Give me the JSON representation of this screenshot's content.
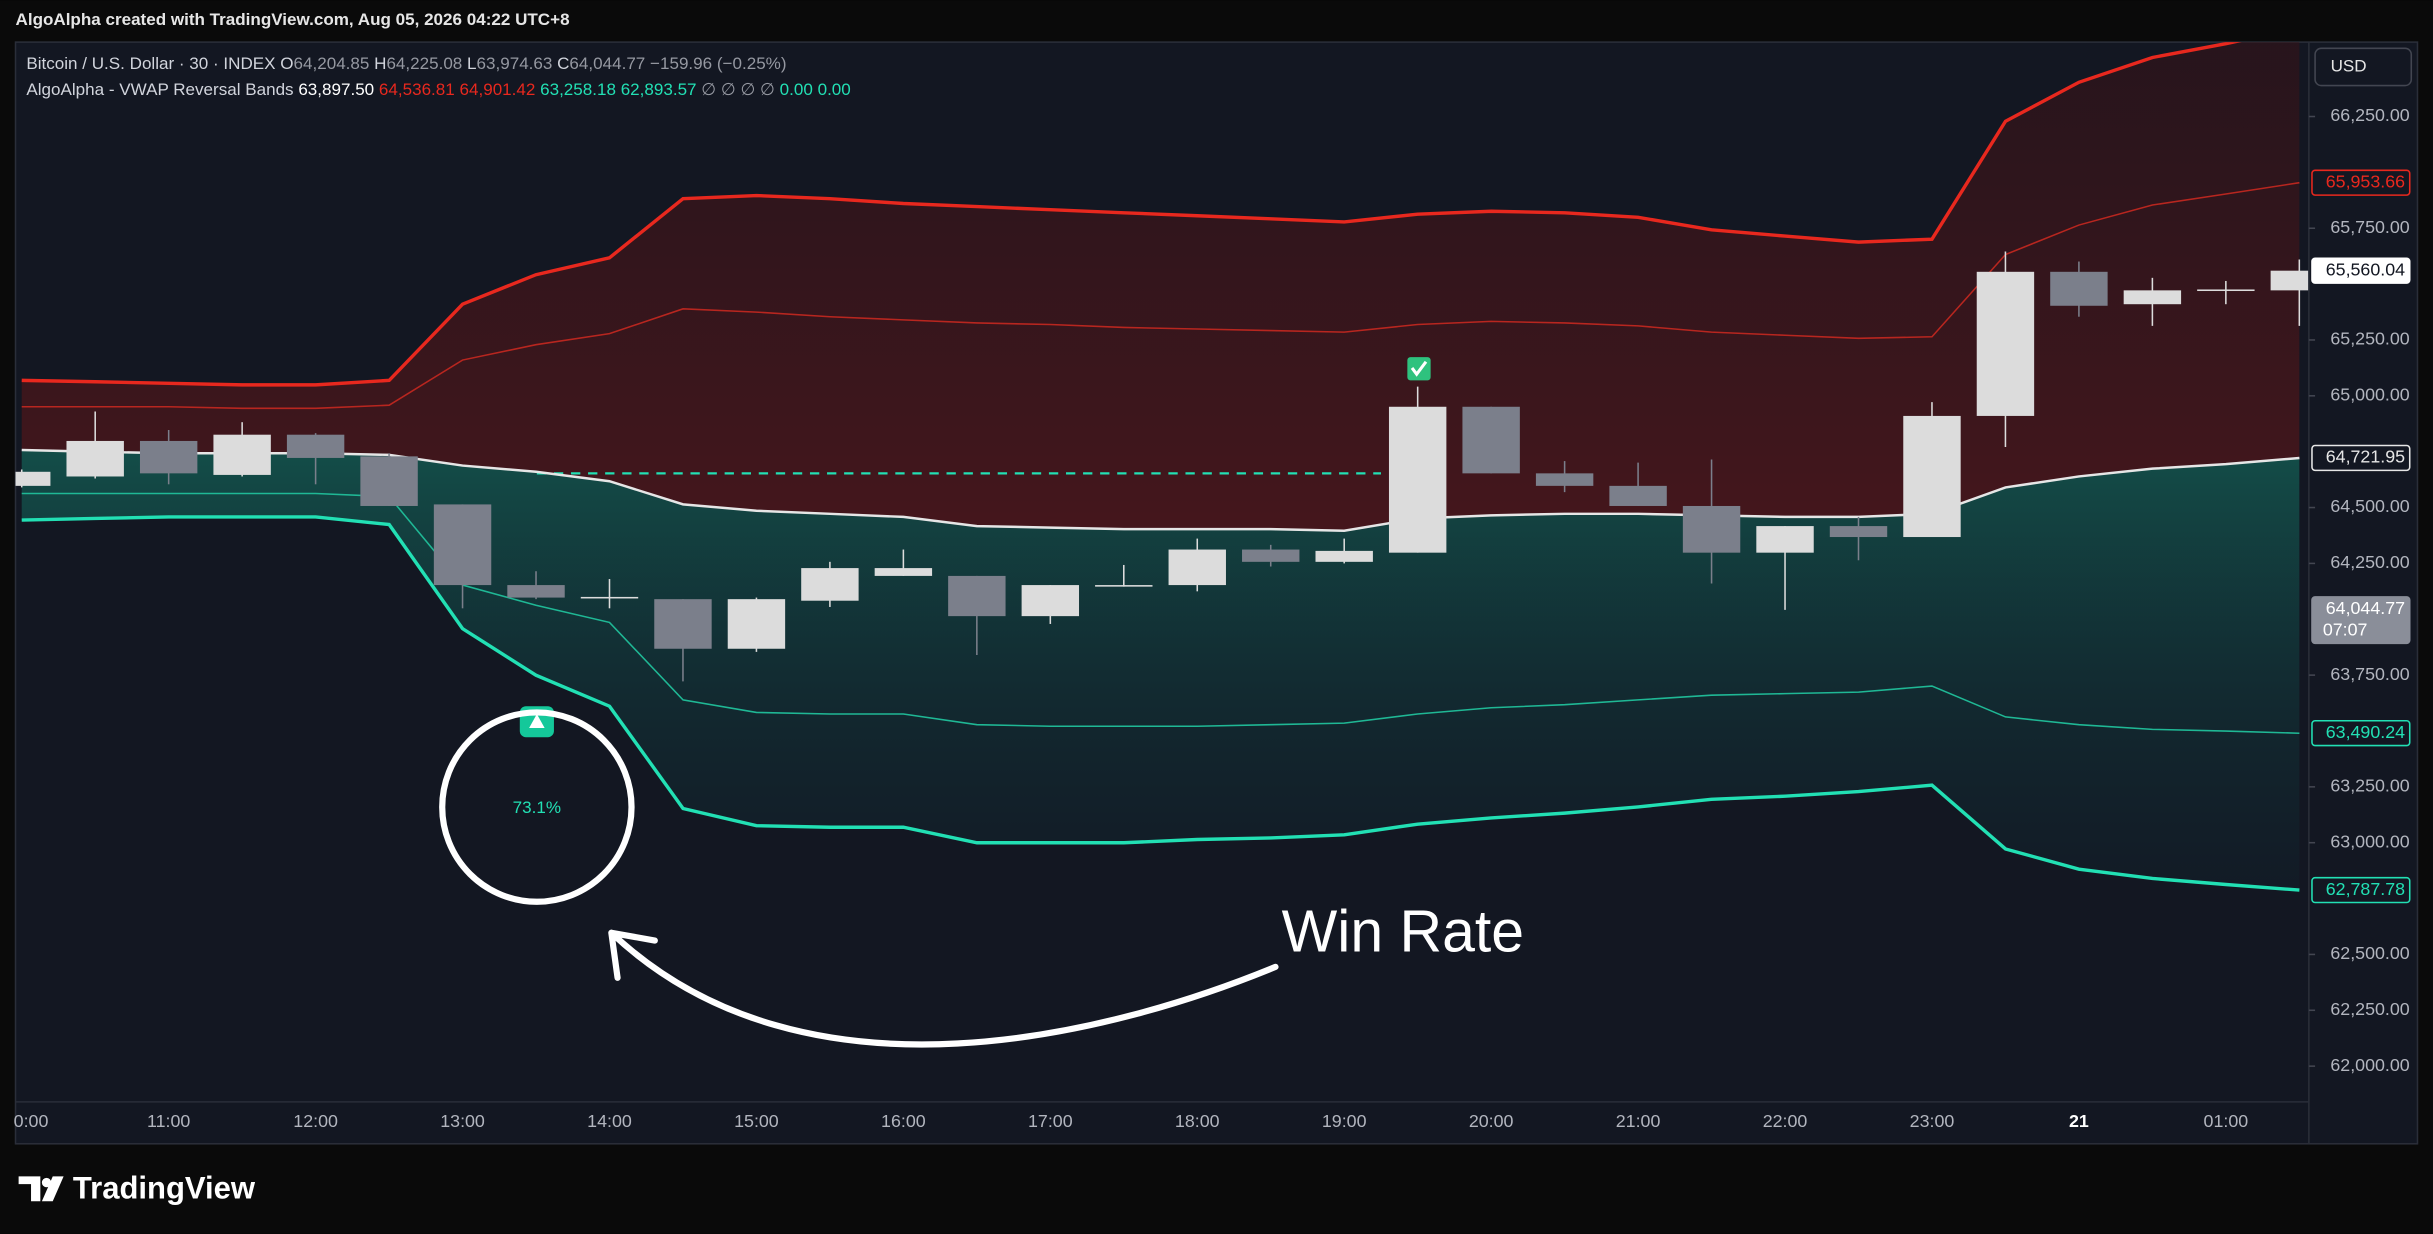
{
  "header": {
    "credit": "AlgoAlpha created with TradingView.com, Aug 05, 2026 04:22 UTC+8",
    "brand": "TradingView",
    "currency": "USD"
  },
  "legend": {
    "symbol": "Bitcoin / U.S. Dollar · 30 · INDEX",
    "o_label": "O",
    "o": "64,204.85",
    "h_label": "H",
    "h": "64,225.08",
    "l_label": "L",
    "l": "63,974.63",
    "c_label": "C",
    "c": "64,044.77",
    "change": "−159.96 (−0.25%)",
    "indicator": "AlgoAlpha - VWAP Reversal Bands",
    "v1": "63,897.50",
    "v2": "64,536.81",
    "v3": "64,901.42",
    "v4": "63,258.18",
    "v5": "62,893.57",
    "empty": "∅ ∅ ∅ ∅",
    "v6": "0.00",
    "v7": "0.00"
  },
  "chart_data": {
    "type": "candlestick",
    "categories": [
      "0:00",
      null,
      "11:00",
      null,
      "12:00",
      null,
      "13:00",
      null,
      "14:00",
      null,
      "15:00",
      null,
      "16:00",
      null,
      "17:00",
      null,
      "18:00",
      null,
      "19:00",
      null,
      "20:00",
      null,
      "21:00",
      null,
      "22:00",
      null,
      "23:00",
      null,
      "21",
      null,
      "01:00",
      null
    ],
    "open": [
      64597,
      64639,
      64798,
      64646,
      64826,
      64729,
      64514,
      64153,
      64097,
      64090,
      63868,
      64083,
      64194,
      64194,
      64014,
      64146,
      64153,
      64312,
      64257,
      64298,
      64951,
      64653,
      64597,
      64507,
      64298,
      64417,
      64368,
      64910,
      65555,
      65410,
      65472,
      65472
    ],
    "high": [
      64670,
      64930,
      64847,
      64882,
      64833,
      64743,
      64514,
      64215,
      64180,
      64090,
      64097,
      64257,
      64312,
      64194,
      64153,
      64243,
      64361,
      64333,
      64361,
      65041,
      64951,
      64708,
      64701,
      64715,
      64417,
      64458,
      64972,
      65646,
      65601,
      65528,
      65514,
      65610
    ],
    "low": [
      64590,
      64630,
      64604,
      64639,
      64604,
      64507,
      64049,
      64090,
      64049,
      63722,
      63854,
      64055,
      64194,
      63840,
      63979,
      64146,
      64125,
      64236,
      64250,
      64298,
      64653,
      64569,
      64507,
      64160,
      64042,
      64264,
      64368,
      64771,
      65354,
      65313,
      65410,
      65313
    ],
    "close": [
      64660,
      64798,
      64653,
      64826,
      64722,
      64507,
      64153,
      64097,
      64100,
      63868,
      64090,
      64229,
      64229,
      64014,
      64153,
      64153,
      64312,
      64257,
      64306,
      64951,
      64653,
      64597,
      64507,
      64298,
      64417,
      64368,
      64910,
      65555,
      65403,
      65472,
      65476,
      65560.04
    ],
    "up_color": "#dcdcdc",
    "down_color": "#7b7f8b",
    "series": [
      {
        "color": "#e8281e",
        "width": 2.2,
        "values": [
          65069,
          65063,
          65056,
          65049,
          65049,
          65069,
          65410,
          65542,
          65618,
          65882,
          65896,
          65882,
          65861,
          65847,
          65833,
          65819,
          65806,
          65792,
          65778,
          65813,
          65826,
          65819,
          65799,
          65743,
          65715,
          65688,
          65701,
          66229,
          66403,
          66514,
          66576,
          66646
        ]
      },
      {
        "color": "#b8261f",
        "width": 1,
        "values": [
          64951,
          64951,
          64951,
          64944,
          64944,
          64958,
          65160,
          65229,
          65278,
          65389,
          65375,
          65354,
          65340,
          65326,
          65319,
          65306,
          65299,
          65292,
          65285,
          65319,
          65333,
          65326,
          65313,
          65285,
          65271,
          65257,
          65264,
          65632,
          65764,
          65854,
          65903,
          65953.66
        ]
      },
      {
        "color": "#e6e6e6",
        "width": 1.6,
        "values": [
          64757,
          64750,
          64743,
          64743,
          64743,
          64736,
          64688,
          64660,
          64618,
          64514,
          64486,
          64472,
          64458,
          64417,
          64410,
          64403,
          64403,
          64403,
          64396,
          64451,
          64465,
          64472,
          64472,
          64465,
          64458,
          64458,
          64472,
          64590,
          64639,
          64674,
          64694,
          64721.95
        ]
      },
      {
        "color": "#1fb895",
        "width": 1,
        "values": [
          64563,
          64563,
          64563,
          64563,
          64563,
          64549,
          64153,
          64063,
          63986,
          63639,
          63583,
          63576,
          63576,
          63528,
          63521,
          63521,
          63521,
          63528,
          63535,
          63576,
          63604,
          63618,
          63639,
          63660,
          63667,
          63674,
          63701,
          63563,
          63528,
          63507,
          63500,
          63490.24
        ]
      },
      {
        "color": "#22e0b4",
        "width": 2.2,
        "values": [
          64444,
          64451,
          64458,
          64458,
          64458,
          64424,
          63958,
          63750,
          63611,
          63153,
          63076,
          63069,
          63069,
          63000,
          63000,
          63000,
          63014,
          63021,
          63035,
          63083,
          63111,
          63132,
          63160,
          63194,
          63208,
          63229,
          63257,
          62972,
          62882,
          62840,
          62813,
          62787.78
        ]
      }
    ],
    "ylim": [
      61840,
      66583
    ],
    "yticks": [
      {
        "value": 62000,
        "label": "62,000.00"
      },
      {
        "value": 62250,
        "label": "62,250.00"
      },
      {
        "value": 62500,
        "label": "62,500.00"
      },
      {
        "value": 63000,
        "label": "63,000.00"
      },
      {
        "value": 63250,
        "label": "63,250.00"
      },
      {
        "value": 63750,
        "label": "63,750.00"
      },
      {
        "value": 64250,
        "label": "64,250.00"
      },
      {
        "value": 64500,
        "label": "64,500.00"
      },
      {
        "value": 65000,
        "label": "65,000.00"
      },
      {
        "value": 65250,
        "label": "65,250.00"
      },
      {
        "value": 65750,
        "label": "65,750.00"
      },
      {
        "value": 66250,
        "label": "66,250.00"
      }
    ],
    "grid": false,
    "signal_level": 64653,
    "price_labels": [
      {
        "value": 65953.66,
        "label": "65,953.66",
        "color": "#e8281e"
      },
      {
        "value": 65560.04,
        "label": "65,560.04",
        "color": "#ffffff"
      },
      {
        "value": 64721.95,
        "label": "64,721.95",
        "color": "#e6e6e6"
      },
      {
        "value": 64044.77,
        "label": "64,044.77",
        "color": "#8a8e99",
        "countdown": "07:07"
      },
      {
        "value": 63490.24,
        "label": "63,490.24",
        "color": "#22e0b4"
      },
      {
        "value": 62787.78,
        "label": "62,787.78",
        "color": "#22e0b4"
      }
    ],
    "annotations": {
      "win_rate": "73.1%",
      "callout": "Win Rate"
    }
  }
}
